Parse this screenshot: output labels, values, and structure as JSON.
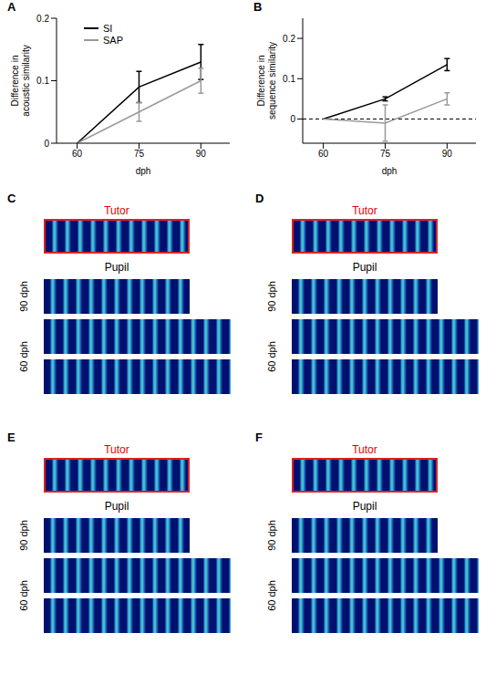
{
  "chart_data": [
    {
      "panel": "A",
      "type": "line",
      "x_label": "dph",
      "y_label": "Difference  in acoustic similarity",
      "x": [
        60,
        75,
        90
      ],
      "xlim": [
        55,
        97
      ],
      "xticks": [
        60,
        75,
        90
      ],
      "ylim": [
        0,
        0.2
      ],
      "yticks": [
        0,
        0.1,
        0.2
      ],
      "legend": "upper left",
      "series": [
        {
          "name": "SI",
          "color": "#000000",
          "values": [
            0,
            0.09,
            0.13
          ],
          "errors": [
            0,
            0.025,
            0.028
          ]
        },
        {
          "name": "SAP",
          "color": "#999999",
          "values": [
            0,
            0.05,
            0.1
          ],
          "errors": [
            0,
            0.015,
            0.02
          ]
        }
      ]
    },
    {
      "panel": "B",
      "type": "line",
      "x_label": "dph",
      "y_label": "Difference  in sequence  similarity",
      "x": [
        60,
        75,
        90
      ],
      "xlim": [
        55,
        97
      ],
      "xticks": [
        60,
        75,
        90
      ],
      "ylim": [
        -0.06,
        0.25
      ],
      "yticks": [
        0,
        0.1,
        0.2
      ],
      "reference_y": 0,
      "series": [
        {
          "name": "SI",
          "color": "#000000",
          "values": [
            0,
            0.05,
            0.135
          ],
          "errors": [
            0,
            0.005,
            0.015
          ]
        },
        {
          "name": "SAP",
          "color": "#999999",
          "values": [
            0,
            -0.01,
            0.05
          ],
          "errors": [
            0,
            0.045,
            0.015
          ]
        }
      ]
    }
  ],
  "spectrogram_panels": [
    {
      "panel": "C",
      "tutor_label": "Tutor",
      "pupil_label": "Pupil",
      "row_labels": [
        "90 dph",
        "60 dph"
      ]
    },
    {
      "panel": "D",
      "tutor_label": "Tutor",
      "pupil_label": "Pupil",
      "row_labels": [
        "90 dph",
        "60 dph"
      ]
    },
    {
      "panel": "E",
      "tutor_label": "Tutor",
      "pupil_label": "Pupil",
      "row_labels": [
        "90 dph",
        "60 dph"
      ]
    },
    {
      "panel": "F",
      "tutor_label": "Tutor",
      "pupil_label": "Pupil",
      "row_labels": [
        "90 dph",
        "60 dph"
      ]
    }
  ]
}
